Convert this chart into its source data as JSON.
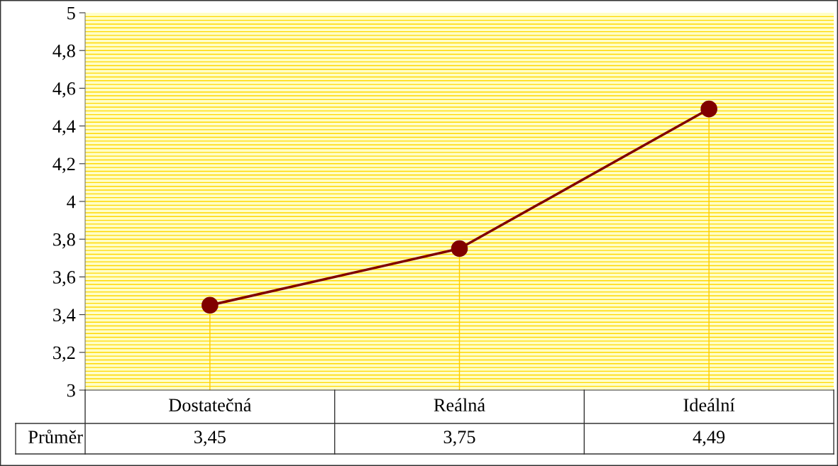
{
  "chart_data": {
    "type": "line",
    "categories": [
      "Dostatečná",
      "Reálná",
      "Ideální"
    ],
    "series": [
      {
        "name": "Průměr",
        "color": "#800000",
        "values": [
          3.45,
          3.75,
          4.49
        ],
        "value_labels": [
          "3,45",
          "3,75",
          "4,49"
        ],
        "errors": [
          [
            3,
            3.45
          ],
          [
            3,
            3.75
          ],
          [
            3,
            4.49
          ]
        ]
      }
    ],
    "ylim": [
      3,
      5
    ],
    "yticks": [
      3,
      {
        "value": 3.2,
        "label": "3,2"
      },
      {
        "value": 3.4,
        "label": "3,4"
      },
      {
        "value": 3.6,
        "label": "3,6"
      },
      {
        "value": 3.8,
        "label": "3,8"
      },
      4,
      {
        "value": 4.2,
        "label": "4,2"
      },
      {
        "value": 4.4,
        "label": "4,4"
      },
      {
        "value": 4.6,
        "label": "4,6"
      },
      {
        "value": 4.8,
        "label": "4,8"
      },
      5
    ],
    "grid": true,
    "marker": "circle",
    "line_style": "solid",
    "legend": false
  }
}
